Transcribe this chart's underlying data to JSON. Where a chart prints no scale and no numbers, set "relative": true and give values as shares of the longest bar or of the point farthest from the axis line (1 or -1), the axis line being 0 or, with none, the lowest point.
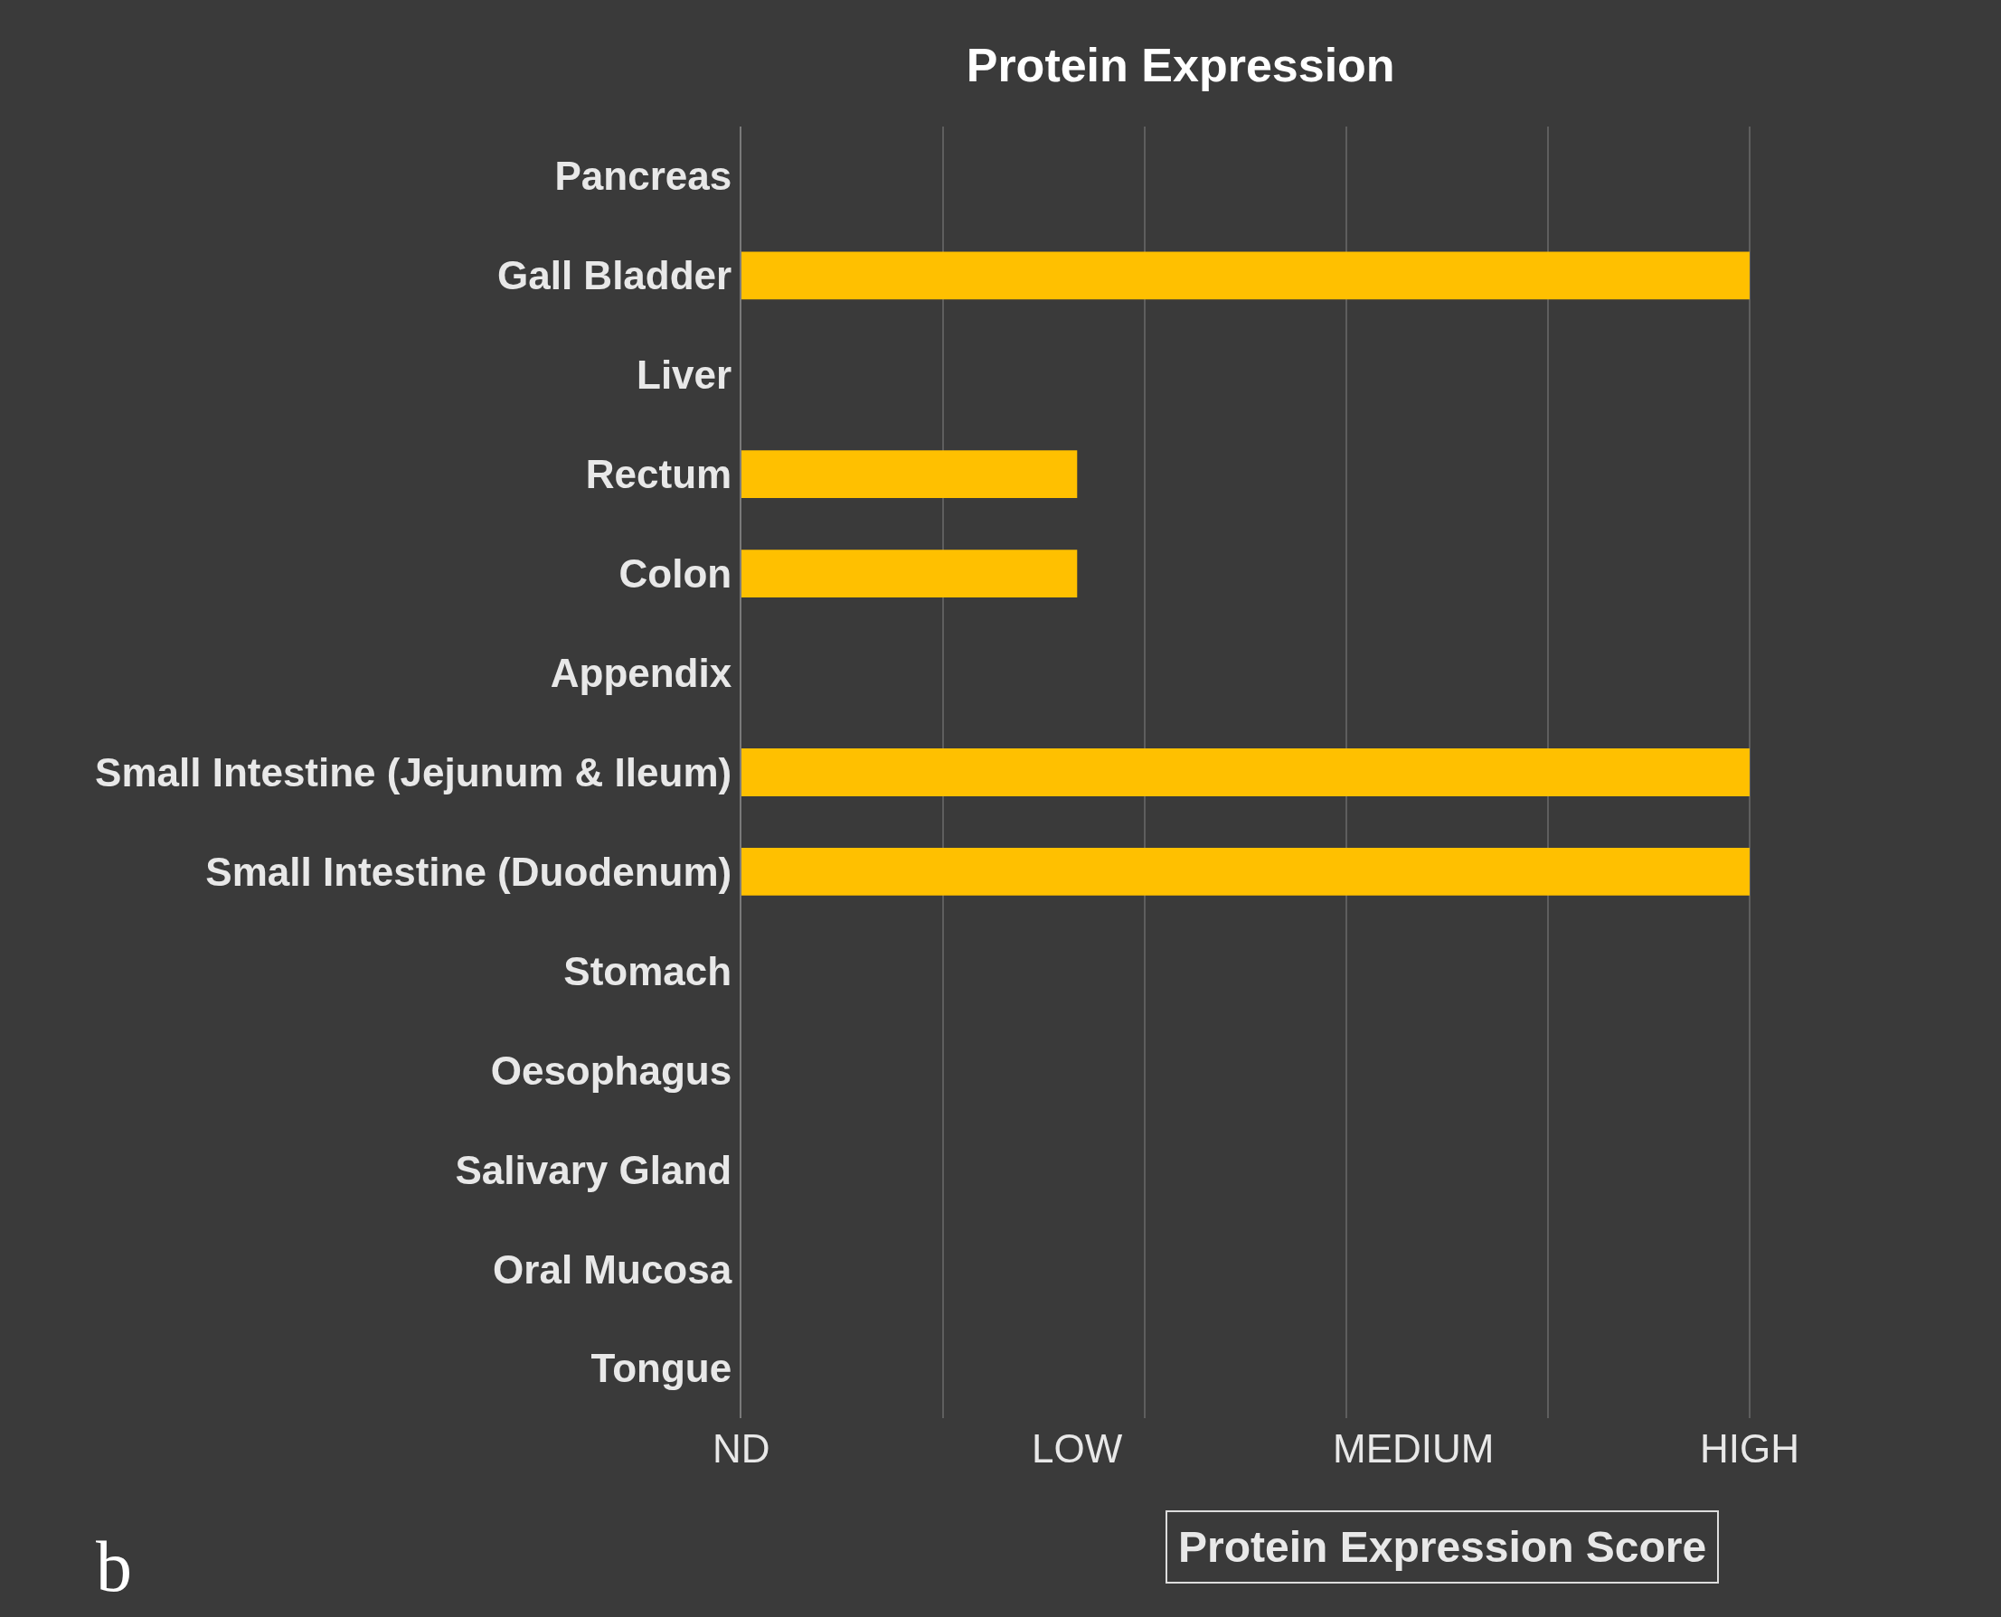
{
  "chart_data": {
    "type": "bar",
    "orientation": "horizontal",
    "title": "Protein Expression",
    "xlabel": "Protein Expression Score",
    "categories": [
      "Pancreas",
      "Gall Bladder",
      "Liver",
      "Rectum",
      "Colon",
      "Appendix",
      "Small Intestine (Jejunum & Ileum)",
      "Small Intestine (Duodenum)",
      "Stomach",
      "Oesophagus",
      "Salivary Gland",
      "Oral Mucosa",
      "Tongue"
    ],
    "values": [
      0,
      1,
      0,
      0.333,
      0.333,
      0,
      1,
      1,
      0,
      0,
      0,
      0,
      0
    ],
    "relative": true,
    "color": "#ffc000",
    "grid": "x",
    "annotations": [
      "ND",
      "LOW",
      "MEDIUM",
      "HIGH",
      "b"
    ]
  }
}
